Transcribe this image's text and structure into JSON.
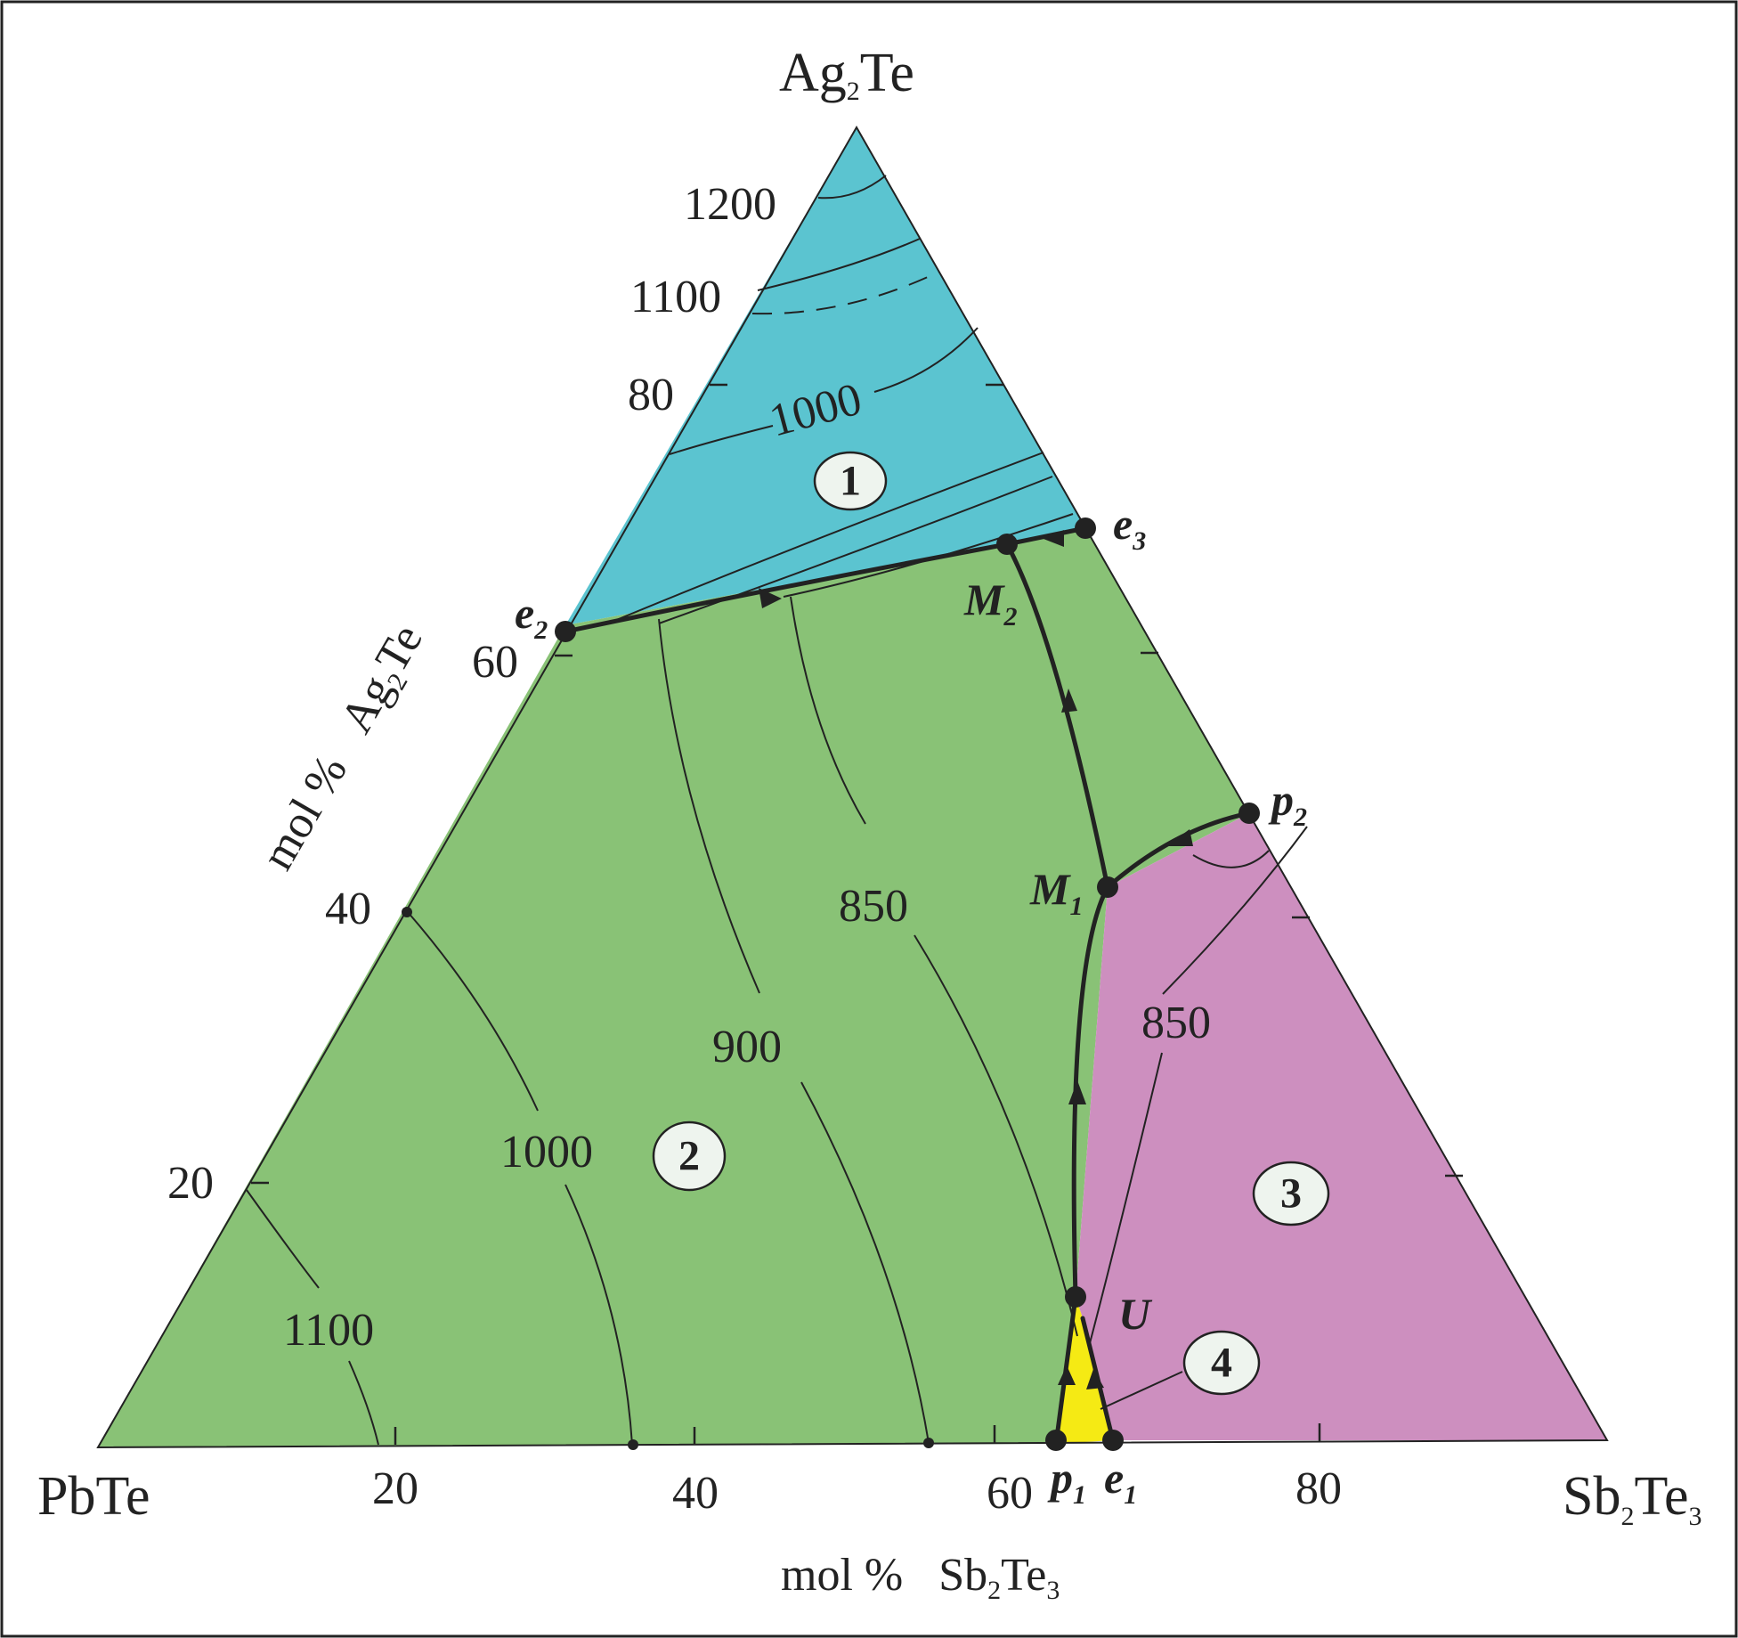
{
  "diagram": {
    "vertices": {
      "top": {
        "base": "Ag",
        "sub": "2",
        "rest": "Te"
      },
      "left": {
        "text": "PbTe"
      },
      "right": {
        "base": "Sb",
        "sub": "2",
        "rest": "Te",
        "sub2": "3"
      }
    },
    "axes": {
      "bottom": {
        "prefix": "mol %",
        "base": "Sb",
        "sub": "2",
        "rest": "Te",
        "sub2": "3",
        "ticks": [
          "20",
          "40",
          "60",
          "80"
        ]
      },
      "left": {
        "prefix": "mol %",
        "base": "Ag",
        "sub": "2",
        "rest": "Te",
        "ticks": [
          "20",
          "40",
          "60",
          "80"
        ]
      }
    },
    "isotherm_labels": {
      "t1200": "1200",
      "t1100_top": "1100",
      "t1000_top": "1000",
      "t850_green": "850",
      "t900": "900",
      "t1000_green": "1000",
      "t1100_green": "1100",
      "t850_pink": "850"
    },
    "points": {
      "e1": {
        "letter": "e",
        "sub": "1"
      },
      "e2": {
        "letter": "e",
        "sub": "2"
      },
      "e3": {
        "letter": "e",
        "sub": "3"
      },
      "p1": {
        "letter": "p",
        "sub": "1"
      },
      "p2": {
        "letter": "p",
        "sub": "2"
      },
      "M1": {
        "letter": "M",
        "sub": "1"
      },
      "M2": {
        "letter": "M",
        "sub": "2"
      },
      "U": {
        "letter": "U",
        "sub": ""
      }
    },
    "regions": {
      "r1": {
        "label": "1",
        "color": "#5bc4d0"
      },
      "r2": {
        "label": "2",
        "color": "#89c276"
      },
      "r3": {
        "label": "3",
        "color": "#cd8fbf"
      },
      "r4": {
        "label": "4",
        "color": "#f5ea14"
      }
    }
  }
}
